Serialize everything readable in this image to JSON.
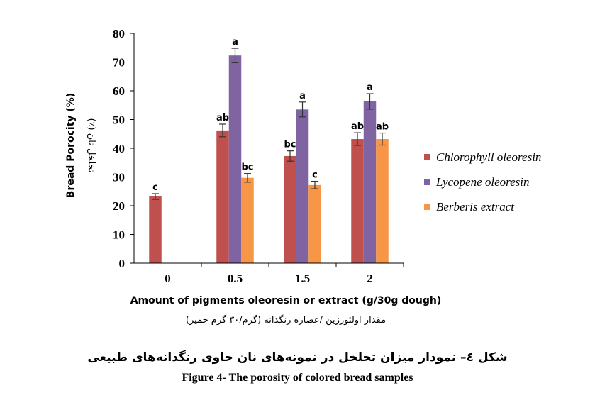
{
  "chart_data": {
    "type": "bar",
    "categories": [
      "0",
      "0.5",
      "1.5",
      "2"
    ],
    "series": [
      {
        "name": "Chlorophyll oleoresin",
        "color": "#c0504d",
        "values": [
          23.2,
          46.2,
          37.3,
          43.2
        ],
        "errors": [
          1.0,
          2.2,
          1.8,
          2.2
        ],
        "labels": [
          "c",
          "ab",
          "bc",
          "ab"
        ]
      },
      {
        "name": "Lycopene oleoresin",
        "color": "#8064a2",
        "values": [
          null,
          72.3,
          53.5,
          56.3
        ],
        "errors": [
          null,
          2.5,
          2.6,
          2.7
        ],
        "labels": [
          "",
          "a",
          "a",
          "a"
        ]
      },
      {
        "name": "Berberis extract",
        "color": "#f79646",
        "values": [
          null,
          29.7,
          27.2,
          43.2
        ],
        "errors": [
          null,
          1.5,
          1.3,
          2.1
        ],
        "labels": [
          "",
          "bc",
          "c",
          "ab"
        ]
      }
    ],
    "ylim": [
      0,
      80
    ],
    "yticks": [
      0,
      10,
      20,
      30,
      40,
      50,
      60,
      70,
      80
    ],
    "xlabel": "Amount of pigments oleoresin or extract (g/30g dough)",
    "xlabel_fa": "مقدار اولئورزین /عصاره  رنگدانه (گرم/۳۰ گرم خمیر)",
    "ylabel": "Bread Porocity (%)",
    "ylabel_fa": "تخلخل نان (٪)",
    "legend_position": "right",
    "grid": false
  },
  "caption": {
    "fa": "شکل ٤– نمودار میزان تخلخل در نمونه‌های نان حاوی رنگدانه‌های طبیعی",
    "en": "Figure 4- The porosity of colored bread samples"
  }
}
